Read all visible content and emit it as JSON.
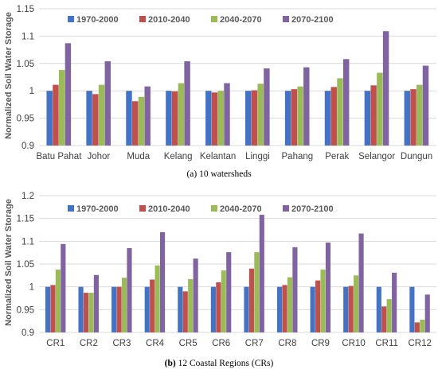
{
  "colors": {
    "series": [
      "#4472c4",
      "#c0504d",
      "#9bbb59",
      "#8064a2"
    ],
    "grid": "#d9d9d9"
  },
  "chart_data": [
    {
      "type": "bar",
      "caption": "(a) 10 watersheds",
      "ylabel": "Normalized Soil Water Storage",
      "ylim": [
        0.9,
        1.15
      ],
      "yticks": [
        "0.9",
        "0.95",
        "1",
        "1.05",
        "1.1",
        "1.15"
      ],
      "grid": true,
      "legend_position": "top",
      "categories": [
        "Batu Pahat",
        "Johor",
        "Muda",
        "Kelang",
        "Kelantan",
        "Linggi",
        "Pahang",
        "Perak",
        "Selangor",
        "Dungun"
      ],
      "series": [
        {
          "name": "1970-2000",
          "values": [
            1.0,
            1.0,
            1.0,
            1.0,
            1.0,
            1.0,
            1.0,
            1.0,
            1.0,
            1.0
          ]
        },
        {
          "name": "2010-2040",
          "values": [
            1.011,
            0.994,
            0.981,
            0.999,
            0.997,
            1.001,
            1.003,
            1.007,
            1.01,
            1.003
          ]
        },
        {
          "name": "2040-2070",
          "values": [
            1.038,
            1.011,
            0.989,
            1.014,
            1.0,
            1.013,
            1.008,
            1.023,
            1.033,
            1.011
          ]
        },
        {
          "name": "2070-2100",
          "values": [
            1.087,
            1.054,
            1.008,
            1.054,
            1.014,
            1.041,
            1.043,
            1.058,
            1.109,
            1.046
          ]
        }
      ]
    },
    {
      "type": "bar",
      "caption_bold": "(b)",
      "caption": " 12 Coastal Regions (CRs)",
      "ylabel": "Normalized Soil Water Storage",
      "ylim": [
        0.9,
        1.2
      ],
      "yticks": [
        "0.9",
        "0.95",
        "1",
        "1.05",
        "1.1",
        "1.15",
        "1.2"
      ],
      "grid": true,
      "legend_position": "top",
      "categories": [
        "CR1",
        "CR2",
        "CR3",
        "CR4",
        "CR5",
        "CR6",
        "CR7",
        "CR8",
        "CR9",
        "CR10",
        "CR11",
        "CR12"
      ],
      "series": [
        {
          "name": "1970-2000",
          "values": [
            1.0,
            1.0,
            1.0,
            1.0,
            1.0,
            1.0,
            1.0,
            1.0,
            1.0,
            1.0,
            1.0,
            1.0
          ]
        },
        {
          "name": "2010-2040",
          "values": [
            1.004,
            0.987,
            1.0,
            1.016,
            0.99,
            1.01,
            1.04,
            1.004,
            1.014,
            1.002,
            0.957,
            0.922
          ]
        },
        {
          "name": "2040-2070",
          "values": [
            1.038,
            0.987,
            1.02,
            1.047,
            1.017,
            1.036,
            1.076,
            1.021,
            1.038,
            1.025,
            0.973,
            0.928
          ]
        },
        {
          "name": "2070-2100",
          "values": [
            1.094,
            1.026,
            1.085,
            1.12,
            1.062,
            1.076,
            1.158,
            1.087,
            1.097,
            1.117,
            1.031,
            0.983
          ]
        }
      ]
    }
  ]
}
